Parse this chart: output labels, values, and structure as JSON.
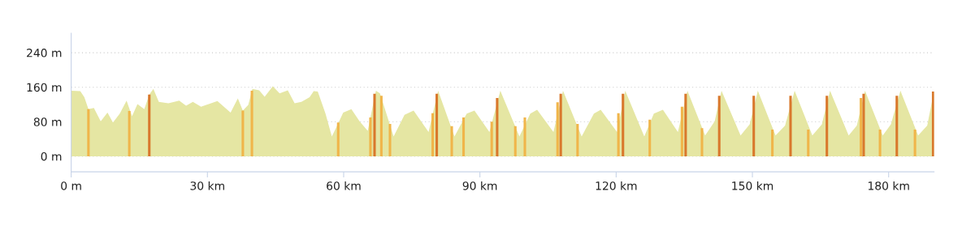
{
  "chart_data": {
    "type": "area",
    "xlim": [
      0,
      190
    ],
    "ylim": [
      -36,
      285
    ],
    "xticks": [
      {
        "value": 0,
        "label": "0 m"
      },
      {
        "value": 30,
        "label": "30 km"
      },
      {
        "value": 60,
        "label": "60 km"
      },
      {
        "value": 90,
        "label": "90 km"
      },
      {
        "value": 120,
        "label": "120 km"
      },
      {
        "value": 150,
        "label": "150 km"
      },
      {
        "value": 180,
        "label": "180 km"
      }
    ],
    "yticks": [
      {
        "value": 0,
        "label": "0 m"
      },
      {
        "value": 80,
        "label": "80 m"
      },
      {
        "value": 160,
        "label": "160 m"
      },
      {
        "value": 240,
        "label": "240 m"
      }
    ],
    "grid": "y",
    "series": [
      {
        "color": "#e5e6a3",
        "x": [
          0,
          2.0,
          2.9,
          3.8,
          5.0,
          6.5,
          8.0,
          9.2,
          10.7,
          12.2,
          13.4,
          14.6,
          16.1,
          17.2,
          18.1,
          19.3,
          21.4,
          23.8,
          25.3,
          26.8,
          28.6,
          32.2,
          35.1,
          36.7,
          37.8,
          39.0,
          39.9,
          41.4,
          42.6,
          44.4,
          45.9,
          47.7,
          49.2,
          50.7,
          52.5,
          53.4,
          54.3,
          56.0,
          57.4,
          58.7,
          59.9,
          61.7,
          63.5,
          65.3,
          67.1,
          68.0,
          71.0,
          73.4,
          75.4,
          78.7,
          80.8,
          84.4,
          87.1,
          88.8,
          92.1,
          94.5,
          98.7,
          101.1,
          102.6,
          106.2,
          108.3,
          112.4,
          115.1,
          116.6,
          120.2,
          122.0,
          126.2,
          128.3,
          130.3,
          133.6,
          135.7,
          139.6,
          141.7,
          143.2,
          147.4,
          149.4,
          151.2,
          155.1,
          157.2,
          159.3,
          163.2,
          165.3,
          167.1,
          171.2,
          173.0,
          174.8,
          178.7,
          180.5,
          182.6,
          186.5,
          188.5,
          190
        ],
        "values": [
          152,
          151,
          137,
          109,
          112,
          81,
          101,
          78,
          99,
          129,
          93,
          121,
          109,
          143,
          156,
          126,
          123,
          129,
          117,
          126,
          115,
          128,
          101,
          134,
          106,
          119,
          156,
          153,
          138,
          162,
          146,
          153,
          123,
          126,
          137,
          151,
          150,
          99,
          46,
          74,
          101,
          109,
          81,
          59,
          152,
          146,
          46,
          96,
          106,
          56,
          152,
          46,
          99,
          106,
          56,
          152,
          46,
          99,
          108,
          56,
          152,
          46,
          99,
          108,
          56,
          152,
          46,
          99,
          108,
          56,
          152,
          48,
          81,
          152,
          48,
          74,
          152,
          48,
          71,
          152,
          48,
          74,
          152,
          48,
          71,
          152,
          48,
          74,
          152,
          48,
          71,
          152
        ]
      },
      {
        "type": "bar",
        "color": "#f0b54a",
        "x": [
          3.8,
          12.8,
          37.8,
          39.8,
          58.8,
          65.9,
          68.3,
          70.2,
          79.6,
          83.8,
          86.4,
          92.6,
          97.8,
          99.9,
          107.1,
          111.5,
          120.5,
          127.4,
          134.5,
          138.9,
          154.4,
          162.3,
          173.9,
          178.1,
          185.8
        ],
        "values": [
          109,
          105,
          106,
          152,
          78,
          90,
          140,
          75,
          100,
          70,
          90,
          80,
          70,
          90,
          125,
          75,
          100,
          85,
          115,
          65,
          62,
          62,
          135,
          62,
          62
        ]
      },
      {
        "type": "bar",
        "color": "#d9782c",
        "x": [
          17.2,
          66.8,
          80.5,
          93.8,
          107.8,
          121.5,
          135.3,
          142.7,
          150.3,
          158.4,
          166.4,
          174.5,
          181.8,
          189.8
        ],
        "values": [
          143,
          145,
          145,
          135,
          145,
          145,
          145,
          140,
          140,
          140,
          140,
          145,
          140,
          150
        ]
      }
    ]
  }
}
